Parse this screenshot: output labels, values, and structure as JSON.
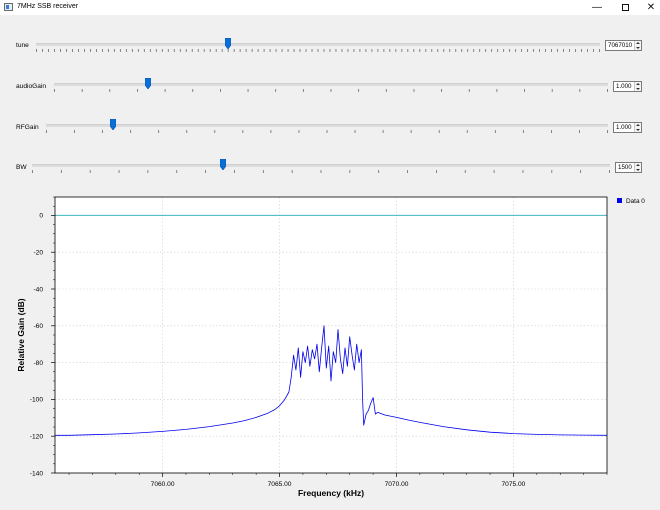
{
  "window": {
    "title": "7MHz SSB receiver",
    "minimize_icon": "minimize-icon",
    "maximize_icon": "maximize-icon",
    "close_icon": "close-icon"
  },
  "controls": [
    {
      "label": "tune",
      "value": "7067010",
      "fraction": 0.34
    },
    {
      "label": "audioGain",
      "value": "1.000",
      "fraction": 0.17
    },
    {
      "label": "RFGain",
      "value": "1.000",
      "fraction": 0.12
    },
    {
      "label": "BW",
      "value": "1500",
      "fraction": 0.33
    }
  ],
  "legend": {
    "label": "Data 0",
    "color": "#0000ee"
  },
  "chart_data": {
    "type": "line",
    "xlabel": "Frequency (kHz)",
    "ylabel": "Relative Gain (dB)",
    "xlim": [
      7055.4,
      7079.0
    ],
    "ylim": [
      -140,
      10
    ],
    "xticks": [
      7060.0,
      7065.0,
      7070.0,
      7075.0
    ],
    "xtick_labels": [
      "7060.00",
      "7065.00",
      "7070.00",
      "7075.00"
    ],
    "yticks": [
      0,
      -20,
      -40,
      -60,
      -80,
      -100,
      -120,
      -140
    ],
    "ytick_labels": [
      "0",
      "-20",
      "-40",
      "-60",
      "-80",
      "-100",
      "-120",
      "-140"
    ],
    "grid": true,
    "legend_position": "top-right",
    "reference_line": {
      "y": 0,
      "color": "#40b8c0"
    },
    "series": [
      {
        "name": "Data 0",
        "color": "#0000ee",
        "x": [
          7055.4,
          7056.0,
          7057.0,
          7058.0,
          7059.0,
          7060.0,
          7061.0,
          7062.0,
          7063.0,
          7063.5,
          7064.0,
          7064.5,
          7064.8,
          7065.0,
          7065.2,
          7065.4,
          7065.5,
          7065.6,
          7065.7,
          7065.8,
          7065.9,
          7066.0,
          7066.1,
          7066.2,
          7066.3,
          7066.4,
          7066.5,
          7066.6,
          7066.7,
          7066.8,
          7066.9,
          7067.0,
          7067.1,
          7067.2,
          7067.3,
          7067.4,
          7067.5,
          7067.6,
          7067.7,
          7067.8,
          7067.9,
          7068.0,
          7068.1,
          7068.2,
          7068.3,
          7068.4,
          7068.5,
          7068.55,
          7068.6,
          7068.7,
          7068.8,
          7068.9,
          7069.0,
          7069.1,
          7069.2,
          7069.3,
          7069.5,
          7070.0,
          7070.5,
          7071.0,
          7072.0,
          7073.0,
          7074.0,
          7075.0,
          7076.0,
          7077.0,
          7078.0,
          7079.0
        ],
        "y": [
          -119.5,
          -119.5,
          -119.2,
          -118.8,
          -118.2,
          -117.4,
          -116.3,
          -114.8,
          -112.8,
          -111.5,
          -109.8,
          -107.5,
          -105.5,
          -103.5,
          -100.5,
          -96.0,
          -88.0,
          -76.0,
          -84.0,
          -72.0,
          -88.0,
          -74.0,
          -80.0,
          -71.0,
          -82.0,
          -73.0,
          -78.0,
          -70.0,
          -85.0,
          -72.0,
          -60.0,
          -83.0,
          -71.0,
          -90.0,
          -74.0,
          -80.0,
          -62.0,
          -78.0,
          -86.0,
          -72.0,
          -82.0,
          -66.0,
          -76.0,
          -84.0,
          -70.0,
          -80.0,
          -73.0,
          -100.0,
          -114.0,
          -108.0,
          -106.0,
          -102.0,
          -99.0,
          -108.0,
          -107.0,
          -107.5,
          -108.5,
          -109.8,
          -111.2,
          -112.5,
          -114.8,
          -116.5,
          -117.8,
          -118.6,
          -119.0,
          -119.3,
          -119.4,
          -119.5
        ]
      }
    ]
  }
}
